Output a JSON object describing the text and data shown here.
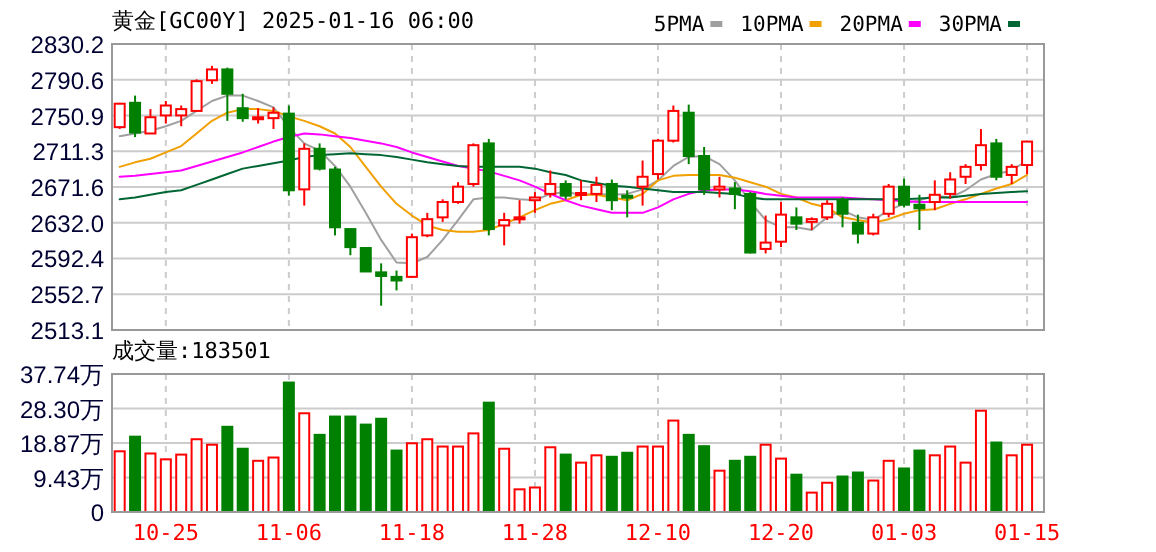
{
  "chart_data": [
    {
      "type": "candlestick",
      "title": "黄金[GC00Y] 2025-01-16 06:00",
      "categories": [
        null,
        null,
        null,
        null,
        null,
        null,
        null,
        null,
        null,
        null,
        null,
        null,
        null,
        null,
        null,
        null,
        null,
        null,
        null,
        null,
        null,
        null,
        null,
        null,
        null,
        null,
        null,
        null,
        null,
        null,
        null,
        null,
        null,
        null,
        null,
        null,
        null,
        null,
        null,
        null,
        null,
        null,
        null,
        null,
        null,
        null,
        null,
        null,
        null,
        null,
        null,
        null,
        null,
        null,
        null,
        null,
        null,
        null,
        null,
        null
      ],
      "ohlc": [
        [
          2738,
          2765,
          2736,
          2764
        ],
        [
          2765,
          2773,
          2727,
          2732
        ],
        [
          2731,
          2758,
          2731,
          2749
        ],
        [
          2751,
          2767,
          2742,
          2762
        ],
        [
          2751,
          2762,
          2739,
          2758
        ],
        [
          2756,
          2791,
          2756,
          2789
        ],
        [
          2790,
          2806,
          2786,
          2802
        ],
        [
          2802,
          2804,
          2745,
          2775
        ],
        [
          2759,
          2775,
          2744,
          2748
        ],
        [
          2747,
          2759,
          2742,
          2749
        ],
        [
          2748,
          2760,
          2736,
          2754
        ],
        [
          2753,
          2762,
          2662,
          2668
        ],
        [
          2669,
          2720,
          2651,
          2714
        ],
        [
          2714,
          2720,
          2690,
          2692
        ],
        [
          2691,
          2694,
          2618,
          2627
        ],
        [
          2625,
          2625,
          2596,
          2605
        ],
        [
          2604,
          2604,
          2578,
          2578
        ],
        [
          2577,
          2587,
          2540,
          2573
        ],
        [
          2572,
          2579,
          2557,
          2568
        ],
        [
          2572,
          2620,
          2571,
          2616
        ],
        [
          2618,
          2643,
          2616,
          2636
        ],
        [
          2638,
          2658,
          2633,
          2655
        ],
        [
          2655,
          2677,
          2653,
          2672
        ],
        [
          2675,
          2720,
          2672,
          2718
        ],
        [
          2720,
          2725,
          2618,
          2625
        ],
        [
          2629,
          2643,
          2607,
          2635
        ],
        [
          2636,
          2657,
          2631,
          2638
        ],
        [
          2657,
          2666,
          2643,
          2660
        ],
        [
          2664,
          2690,
          2660,
          2675
        ],
        [
          2675,
          2679,
          2658,
          2662
        ],
        [
          2663,
          2679,
          2657,
          2665
        ],
        [
          2664,
          2683,
          2655,
          2674
        ],
        [
          2675,
          2680,
          2646,
          2657
        ],
        [
          2662,
          2668,
          2638,
          2660
        ],
        [
          2672,
          2701,
          2651,
          2683
        ],
        [
          2686,
          2725,
          2680,
          2723
        ],
        [
          2723,
          2762,
          2721,
          2756
        ],
        [
          2754,
          2763,
          2697,
          2706
        ],
        [
          2706,
          2716,
          2663,
          2669
        ],
        [
          2669,
          2683,
          2660,
          2672
        ],
        [
          2670,
          2677,
          2647,
          2664
        ],
        [
          2664,
          2666,
          2598,
          2599
        ],
        [
          2603,
          2640,
          2598,
          2610
        ],
        [
          2611,
          2655,
          2605,
          2641
        ],
        [
          2638,
          2649,
          2624,
          2631
        ],
        [
          2633,
          2638,
          2624,
          2636
        ],
        [
          2638,
          2657,
          2635,
          2653
        ],
        [
          2657,
          2660,
          2627,
          2642
        ],
        [
          2632,
          2641,
          2609,
          2620
        ],
        [
          2620,
          2642,
          2618,
          2638
        ],
        [
          2642,
          2675,
          2638,
          2672
        ],
        [
          2672,
          2681,
          2649,
          2652
        ],
        [
          2652,
          2663,
          2624,
          2648
        ],
        [
          2655,
          2679,
          2646,
          2663
        ],
        [
          2664,
          2688,
          2659,
          2680
        ],
        [
          2683,
          2697,
          2675,
          2694
        ],
        [
          2696,
          2736,
          2690,
          2718
        ],
        [
          2720,
          2725,
          2679,
          2683
        ],
        [
          2685,
          2697,
          2675,
          2694
        ],
        [
          2696,
          2722,
          2686,
          2722
        ]
      ],
      "colors": [
        "#ff0000",
        "#008000",
        "#ff0000",
        "#ff0000",
        "#ff0000",
        "#ff0000",
        "#ff0000",
        "#008000",
        "#008000",
        "#ff0000",
        "#ff0000",
        "#008000",
        "#ff0000",
        "#008000",
        "#008000",
        "#008000",
        "#008000",
        "#008000",
        "#008000",
        "#ff0000",
        "#ff0000",
        "#ff0000",
        "#ff0000",
        "#ff0000",
        "#008000",
        "#ff0000",
        "#ff0000",
        "#ff0000",
        "#ff0000",
        "#008000",
        "#ff0000",
        "#ff0000",
        "#008000",
        "#008000",
        "#ff0000",
        "#ff0000",
        "#ff0000",
        "#008000",
        "#008000",
        "#ff0000",
        "#008000",
        "#008000",
        "#ff0000",
        "#ff0000",
        "#008000",
        "#ff0000",
        "#ff0000",
        "#008000",
        "#008000",
        "#ff0000",
        "#ff0000",
        "#008000",
        "#008000",
        "#ff0000",
        "#ff0000",
        "#ff0000",
        "#ff0000",
        "#008000",
        "#ff0000",
        "#ff0000"
      ],
      "series": [
        {
          "name": "5PMA",
          "type": "line",
          "color": "#a0a0a0",
          "values": [
            2728,
            2731,
            2734,
            2739,
            2745,
            2756,
            2767,
            2773,
            2773,
            2767,
            2760,
            2738,
            2720,
            2712,
            2695,
            2672,
            2643,
            2613,
            2588,
            2587,
            2594,
            2613,
            2635,
            2658,
            2660,
            2660,
            2658,
            2657,
            2664,
            2666,
            2663,
            2664,
            2663,
            2664,
            2669,
            2679,
            2695,
            2705,
            2706,
            2697,
            2679,
            2655,
            2635,
            2627,
            2627,
            2624,
            2638,
            2646,
            2638,
            2635,
            2646,
            2653,
            2657,
            2662,
            2660,
            2668,
            2680,
            2686,
            2690,
            2701
          ]
        },
        {
          "name": "10PMA",
          "type": "line",
          "color": "#f0a000",
          "values": [
            2694,
            2699,
            2703,
            2710,
            2717,
            2731,
            2745,
            2754,
            2758,
            2758,
            2756,
            2750,
            2745,
            2739,
            2731,
            2716,
            2694,
            2672,
            2653,
            2640,
            2629,
            2624,
            2622,
            2622,
            2624,
            2631,
            2638,
            2646,
            2653,
            2657,
            2663,
            2663,
            2660,
            2657,
            2664,
            2679,
            2684,
            2685,
            2685,
            2685,
            2682,
            2677,
            2672,
            2664,
            2660,
            2653,
            2649,
            2638,
            2635,
            2632,
            2636,
            2642,
            2646,
            2647,
            2653,
            2658,
            2664,
            2670,
            2675,
            2685
          ]
        },
        {
          "name": "20PMA",
          "type": "line",
          "color": "#ff00ff",
          "values": [
            2683,
            2684,
            2686,
            2688,
            2690,
            2695,
            2700,
            2705,
            2710,
            2716,
            2722,
            2727,
            2731,
            2730,
            2728,
            2726,
            2723,
            2720,
            2716,
            2710,
            2705,
            2700,
            2695,
            2692,
            2689,
            2684,
            2679,
            2672,
            2664,
            2657,
            2651,
            2647,
            2643,
            2643,
            2643,
            2649,
            2658,
            2664,
            2668,
            2669,
            2669,
            2667,
            2664,
            2662,
            2660,
            2660,
            2660,
            2660,
            2659,
            2658,
            2657,
            2656,
            2655,
            2655,
            2655,
            2655,
            2655,
            2655,
            2655,
            2655
          ]
        },
        {
          "name": "30PMA",
          "type": "line",
          "color": "#006633",
          "values": [
            2658,
            2660,
            2663,
            2666,
            2668,
            2674,
            2680,
            2686,
            2692,
            2695,
            2698,
            2701,
            2705,
            2707,
            2708,
            2709,
            2708,
            2707,
            2705,
            2702,
            2699,
            2697,
            2695,
            2694,
            2694,
            2694,
            2694,
            2692,
            2688,
            2685,
            2679,
            2676,
            2673,
            2672,
            2670,
            2668,
            2666,
            2666,
            2666,
            2665,
            2664,
            2660,
            2658,
            2658,
            2658,
            2658,
            2658,
            2658,
            2658,
            2658,
            2658,
            2658,
            2659,
            2660,
            2660,
            2662,
            2664,
            2665,
            2666,
            2667
          ]
        }
      ],
      "ylim": [
        2513.1,
        2830.2
      ],
      "yticks": [
        2513.1,
        2552.7,
        2592.4,
        {
          "value": 2632,
          "label": "2632.0"
        },
        2671.6,
        2711.3,
        2750.9,
        2790.6,
        2830.2
      ],
      "grid": true,
      "legend": "top right",
      "tick_labels": "y"
    },
    {
      "type": "bar",
      "title": "成交量:183501",
      "categories": [
        null,
        null,
        null,
        "10-25",
        null,
        null,
        null,
        null,
        null,
        null,
        null,
        "11-06",
        null,
        null,
        null,
        null,
        null,
        null,
        null,
        "11-18",
        null,
        null,
        null,
        null,
        null,
        null,
        null,
        "11-28",
        null,
        null,
        null,
        null,
        null,
        null,
        null,
        "12-10",
        null,
        null,
        null,
        null,
        null,
        null,
        null,
        "12-20",
        null,
        null,
        null,
        null,
        null,
        null,
        null,
        "01-03",
        null,
        null,
        null,
        null,
        null,
        null,
        null,
        "01-15"
      ],
      "values": [
        16.6,
        20.6,
        16.0,
        14.4,
        15.7,
        19.9,
        18.4,
        23.3,
        17.3,
        14.0,
        14.9,
        35.4,
        27.0,
        21.1,
        26.1,
        26.1,
        23.9,
        25.5,
        16.8,
        18.8,
        19.9,
        17.9,
        17.9,
        21.5,
        29.9,
        17.3,
        6.2,
        6.7,
        17.7,
        15.7,
        13.5,
        15.5,
        15.1,
        16.2,
        17.9,
        17.9,
        25.0,
        21.1,
        18.0,
        11.3,
        14.0,
        15.1,
        18.4,
        14.6,
        10.2,
        5.3,
        8.0,
        9.7,
        10.8,
        8.6,
        14.0,
        11.9,
        16.8,
        15.5,
        17.9,
        13.5,
        27.7,
        19.0,
        15.5,
        18.4
      ],
      "colors": [
        "#ff0000",
        "#008000",
        "#ff0000",
        "#ff0000",
        "#ff0000",
        "#ff0000",
        "#ff0000",
        "#008000",
        "#008000",
        "#ff0000",
        "#ff0000",
        "#008000",
        "#ff0000",
        "#008000",
        "#008000",
        "#008000",
        "#008000",
        "#008000",
        "#008000",
        "#ff0000",
        "#ff0000",
        "#ff0000",
        "#ff0000",
        "#ff0000",
        "#008000",
        "#ff0000",
        "#ff0000",
        "#ff0000",
        "#ff0000",
        "#008000",
        "#ff0000",
        "#ff0000",
        "#008000",
        "#008000",
        "#ff0000",
        "#ff0000",
        "#ff0000",
        "#008000",
        "#008000",
        "#ff0000",
        "#008000",
        "#008000",
        "#ff0000",
        "#ff0000",
        "#008000",
        "#ff0000",
        "#ff0000",
        "#008000",
        "#008000",
        "#ff0000",
        "#ff0000",
        "#008000",
        "#008000",
        "#ff0000",
        "#ff0000",
        "#ff0000",
        "#ff0000",
        "#008000",
        "#ff0000",
        "#ff0000"
      ],
      "ylim": [
        0,
        37.74
      ],
      "yticks": [
        0,
        {
          "value": 9.43,
          "label": "9.43万"
        },
        {
          "value": 18.87,
          "label": "18.87万"
        },
        {
          "value": 28.3,
          "label": "28.30万"
        },
        {
          "value": 37.74,
          "label": "37.74万"
        }
      ],
      "grid": true
    }
  ]
}
